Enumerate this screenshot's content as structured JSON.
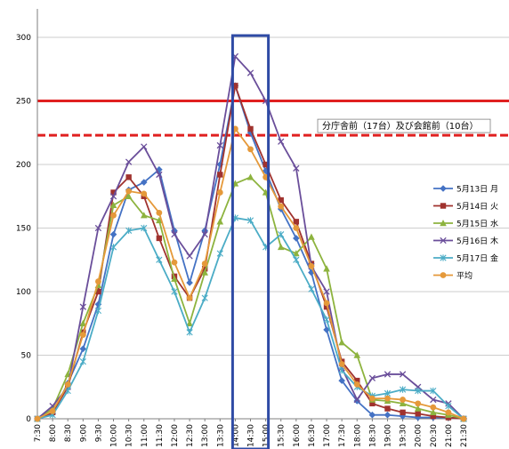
{
  "chart_data": {
    "type": "line",
    "categories": [
      "7:30",
      "8:00",
      "8:30",
      "9:00",
      "9:30",
      "10:00",
      "10:30",
      "11:00",
      "11:30",
      "12:00",
      "12:30",
      "13:00",
      "13:30",
      "14:00",
      "14:30",
      "15:00",
      "15:30",
      "16:00",
      "16:30",
      "17:00",
      "17:30",
      "18:00",
      "18:30",
      "19:00",
      "19:30",
      "20:00",
      "20:30",
      "21:00",
      "21:30"
    ],
    "ylim": [
      0,
      300
    ],
    "yticks": [
      0,
      50,
      100,
      150,
      200,
      250,
      300
    ],
    "grid": true,
    "legend_position": "right",
    "series": [
      {
        "name": "5月13日 月",
        "color": "#4472C4",
        "marker": "diamond",
        "values": [
          0,
          4,
          28,
          55,
          90,
          145,
          180,
          186,
          196,
          148,
          107,
          148,
          200,
          262,
          225,
          195,
          165,
          142,
          115,
          70,
          30,
          14,
          3,
          3,
          2,
          1,
          1,
          1,
          0
        ]
      },
      {
        "name": "5月14日 火",
        "color": "#A0322E",
        "marker": "square",
        "values": [
          0,
          5,
          25,
          68,
          100,
          178,
          190,
          175,
          142,
          112,
          95,
          118,
          192,
          262,
          228,
          200,
          172,
          155,
          122,
          88,
          45,
          30,
          12,
          8,
          5,
          4,
          2,
          1,
          0
        ]
      },
      {
        "name": "5月15日 水",
        "color": "#8DB33E",
        "marker": "triangle",
        "values": [
          0,
          8,
          35,
          75,
          105,
          168,
          175,
          160,
          156,
          110,
          75,
          115,
          155,
          185,
          190,
          178,
          135,
          130,
          143,
          118,
          60,
          50,
          15,
          14,
          12,
          8,
          5,
          3,
          0
        ]
      },
      {
        "name": "5月16日 木",
        "color": "#6A4E9A",
        "marker": "x",
        "values": [
          0,
          10,
          25,
          88,
          150,
          175,
          202,
          214,
          192,
          145,
          128,
          145,
          215,
          285,
          272,
          250,
          218,
          197,
          120,
          100,
          40,
          15,
          32,
          35,
          35,
          25,
          15,
          12,
          0
        ]
      },
      {
        "name": "5月17日 金",
        "color": "#4BACC6",
        "marker": "star",
        "values": [
          0,
          3,
          22,
          45,
          85,
          135,
          148,
          150,
          125,
          100,
          68,
          95,
          130,
          158,
          156,
          135,
          145,
          125,
          102,
          78,
          38,
          25,
          18,
          20,
          23,
          22,
          22,
          10,
          0
        ]
      },
      {
        "name": "平均",
        "color": "#E5993A",
        "marker": "circle",
        "values": [
          0,
          6,
          27,
          66,
          108,
          160,
          179,
          177,
          162,
          123,
          95,
          122,
          178,
          228,
          212,
          190,
          167,
          150,
          120,
          91,
          43,
          27,
          16,
          16,
          15,
          12,
          9,
          5,
          0
        ]
      }
    ],
    "reference_lines": [
      {
        "value": 250,
        "color": "#E02020",
        "style": "solid"
      },
      {
        "value": 223,
        "color": "#E02020",
        "style": "dashed",
        "label": "分庁舎前（17台）及び会館前（10台）"
      }
    ],
    "highlight": {
      "from": "14:00",
      "to": "15:00",
      "color": "#2F4BA5"
    }
  }
}
